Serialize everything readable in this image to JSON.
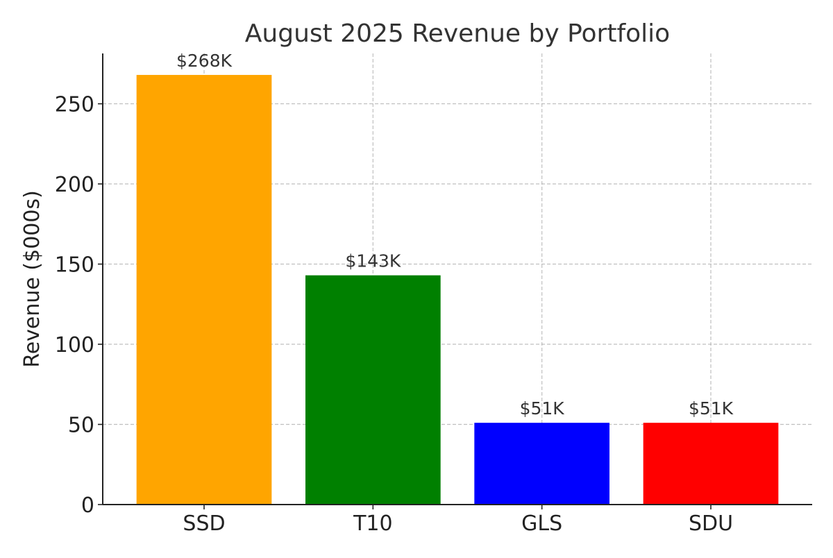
{
  "chart_data": {
    "type": "bar",
    "title": "August 2025 Revenue by Portfolio",
    "xlabel": "",
    "ylabel": "Revenue ($000s)",
    "categories": [
      "SSD",
      "T10",
      "GLS",
      "SDU"
    ],
    "values": [
      268,
      143,
      51,
      51
    ],
    "data_labels": [
      "$268K",
      "$143K",
      "$51K",
      "$51K"
    ],
    "colors": [
      "#FFA500",
      "#008000",
      "#0000FF",
      "#FF0000"
    ],
    "ylim": [
      0,
      281.4
    ],
    "yticks": [
      0,
      50,
      100,
      150,
      200,
      250
    ],
    "grid": true,
    "grid_style": "dashed",
    "legend": "none"
  }
}
